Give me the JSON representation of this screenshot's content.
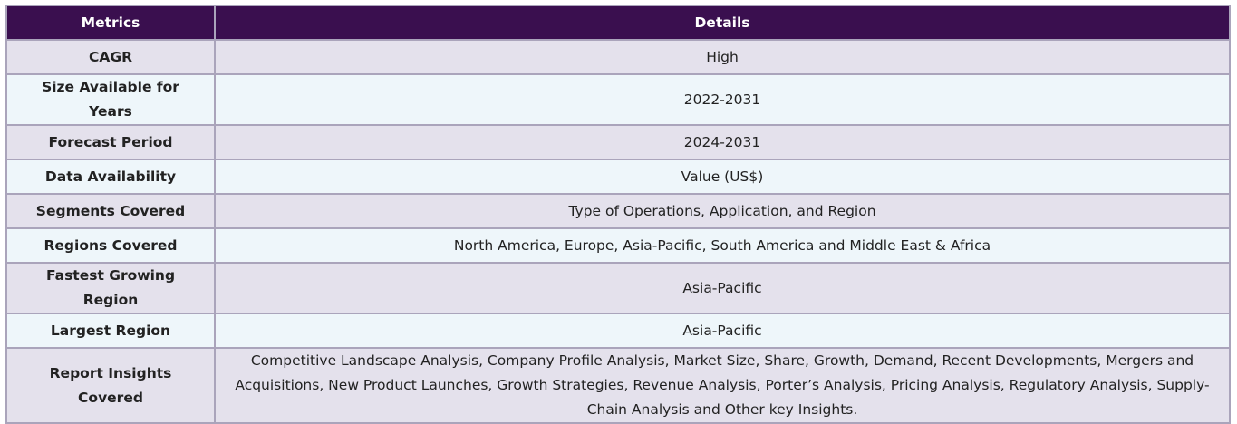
{
  "table": {
    "header": [
      "Metrics",
      "Details"
    ],
    "rows": [
      [
        "CAGR",
        "High"
      ],
      [
        "Size Available for Years",
        "2022-2031"
      ],
      [
        "Forecast Period",
        "2024-2031"
      ],
      [
        "Data Availability",
        "Value (US$)"
      ],
      [
        "Segments Covered",
        "Type of Operations, Application, and Region"
      ],
      [
        "Regions Covered",
        "North America, Europe, Asia-Pacific, South America and Middle East & Africa"
      ],
      [
        "Fastest Growing Region",
        "Asia-Pacific"
      ],
      [
        "Largest Region",
        "Asia-Pacific"
      ],
      [
        "Report Insights Covered",
        "Competitive Landscape Analysis, Company Profile Analysis, Market Size, Share, Growth, Demand, Recent Developments, Mergers and Acquisitions, New Product Launches, Growth Strategies, Revenue Analysis, Porter’s Analysis, Pricing Analysis, Regulatory Analysis, Supply-Chain Analysis and Other key Insights."
      ]
    ]
  }
}
